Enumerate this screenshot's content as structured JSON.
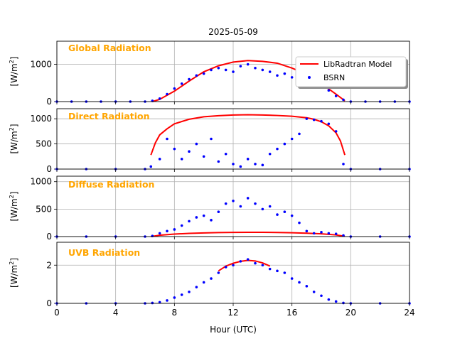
{
  "figure": {
    "title": "2025-05-09",
    "xlabel": "Hour (UTC)",
    "xticks": [
      "0",
      "4",
      "8",
      "12",
      "16",
      "20",
      "24"
    ],
    "legend": {
      "model_label": "LibRadtran Model",
      "obs_label": "BSRN",
      "placement": "top-right of first panel"
    },
    "colors": {
      "model": "#ff0000",
      "obs": "#0000ff",
      "panel_label": "#ffa500",
      "grid": "#b0b0b0"
    }
  },
  "chart_data": [
    {
      "type": "scatter",
      "title": "Global Radiation",
      "ylabel": "[W/m2]",
      "xlim": [
        0,
        24
      ],
      "ylim": [
        0,
        1620
      ],
      "yticks": [
        0,
        1000
      ],
      "ytick_labels": [
        "0",
        "1000"
      ],
      "grid": true,
      "series": [
        {
          "name": "LibRadtran Model",
          "kind": "line",
          "x": [
            6.5,
            7,
            8,
            9,
            10,
            11,
            12,
            13,
            14,
            15,
            16,
            17,
            18,
            19,
            19.6
          ],
          "y": [
            0,
            60,
            280,
            550,
            800,
            960,
            1060,
            1100,
            1080,
            1030,
            900,
            730,
            480,
            200,
            20
          ]
        },
        {
          "name": "BSRN",
          "kind": "scatter",
          "x": [
            0,
            1,
            2,
            3,
            4,
            5,
            6,
            6.5,
            7,
            7.5,
            8,
            8.5,
            9,
            9.5,
            10,
            10.5,
            11,
            11.5,
            12,
            12.5,
            13,
            13.5,
            14,
            14.5,
            15,
            15.5,
            16,
            16.5,
            17,
            17.5,
            18,
            18.5,
            19,
            19.5,
            20,
            21,
            22,
            23,
            24
          ],
          "y": [
            0,
            0,
            0,
            0,
            0,
            0,
            0,
            20,
            80,
            200,
            350,
            480,
            600,
            700,
            750,
            850,
            900,
            850,
            800,
            950,
            1000,
            900,
            850,
            800,
            700,
            750,
            650,
            600,
            550,
            500,
            400,
            300,
            150,
            50,
            0,
            0,
            0,
            0,
            0
          ]
        }
      ]
    },
    {
      "type": "scatter",
      "title": "Direct Radiation",
      "ylabel": "[W/m2]",
      "xlim": [
        0,
        24
      ],
      "ylim": [
        0,
        1200
      ],
      "yticks": [
        0,
        500,
        1000
      ],
      "ytick_labels": [
        "0",
        "500",
        "1000"
      ],
      "grid": true,
      "series": [
        {
          "name": "LibRadtran Model",
          "kind": "line",
          "x": [
            6.4,
            6.7,
            7,
            7.5,
            8,
            9,
            10,
            11,
            12,
            13,
            14,
            15,
            16,
            17,
            17.5,
            18,
            18.5,
            19,
            19.3,
            19.6
          ],
          "y": [
            280,
            520,
            680,
            800,
            900,
            990,
            1040,
            1060,
            1075,
            1080,
            1075,
            1065,
            1050,
            1020,
            990,
            940,
            860,
            720,
            560,
            280
          ]
        },
        {
          "name": "BSRN",
          "kind": "scatter",
          "x": [
            0,
            2,
            4,
            6,
            6.4,
            7,
            7.5,
            8,
            8.5,
            9,
            9.5,
            10,
            10.5,
            11,
            11.5,
            12,
            12.5,
            13,
            13.5,
            14,
            14.5,
            15,
            15.5,
            16,
            16.5,
            17,
            17.5,
            18,
            18.5,
            19,
            19.5,
            20,
            22,
            24
          ],
          "y": [
            0,
            0,
            0,
            0,
            50,
            200,
            600,
            400,
            200,
            350,
            500,
            250,
            600,
            150,
            300,
            100,
            50,
            200,
            100,
            80,
            300,
            400,
            500,
            600,
            700,
            1000,
            980,
            950,
            900,
            750,
            100,
            0,
            0,
            0
          ]
        }
      ]
    },
    {
      "type": "scatter",
      "title": "Diffuse Radiation",
      "ylabel": "[W/m2]",
      "xlim": [
        0,
        24
      ],
      "ylim": [
        0,
        1100
      ],
      "yticks": [
        0,
        500,
        1000
      ],
      "ytick_labels": [
        "0",
        "500",
        "1000"
      ],
      "grid": true,
      "series": [
        {
          "name": "LibRadtran Model",
          "kind": "line",
          "x": [
            6.4,
            7,
            8,
            9,
            10,
            11,
            12,
            13,
            14,
            15,
            16,
            17,
            18,
            19,
            19.6
          ],
          "y": [
            0,
            25,
            45,
            58,
            66,
            72,
            76,
            78,
            77,
            75,
            70,
            62,
            50,
            30,
            5
          ]
        },
        {
          "name": "BSRN",
          "kind": "scatter",
          "x": [
            0,
            2,
            4,
            6,
            6.5,
            7,
            7.5,
            8,
            8.5,
            9,
            9.5,
            10,
            10.5,
            11,
            11.5,
            12,
            12.5,
            13,
            13.5,
            14,
            14.5,
            15,
            15.5,
            16,
            16.5,
            17,
            17.5,
            18,
            18.5,
            19,
            19.5,
            20,
            22,
            24
          ],
          "y": [
            0,
            0,
            0,
            0,
            10,
            60,
            100,
            130,
            200,
            280,
            350,
            380,
            300,
            450,
            600,
            650,
            550,
            700,
            600,
            500,
            550,
            400,
            450,
            380,
            250,
            100,
            60,
            80,
            60,
            50,
            20,
            0,
            0,
            0
          ]
        }
      ]
    },
    {
      "type": "scatter",
      "title": "UVB Radiation",
      "ylabel": "[W/m2]",
      "xlim": [
        0,
        24
      ],
      "ylim": [
        0,
        3.2
      ],
      "yticks": [
        0,
        2
      ],
      "ytick_labels": [
        "0",
        "2"
      ],
      "grid": true,
      "series": [
        {
          "name": "LibRadtran Model",
          "kind": "line",
          "x": [
            11,
            11.5,
            12,
            12.5,
            13,
            13.5,
            14,
            14.5
          ],
          "y": [
            1.7,
            1.95,
            2.1,
            2.2,
            2.25,
            2.22,
            2.12,
            1.95
          ]
        },
        {
          "name": "BSRN",
          "kind": "scatter",
          "x": [
            0,
            2,
            4,
            6,
            6.5,
            7,
            7.5,
            8,
            8.5,
            9,
            9.5,
            10,
            10.5,
            11,
            11.5,
            12,
            12.5,
            13,
            13.5,
            14,
            14.5,
            15,
            15.5,
            16,
            16.5,
            17,
            17.5,
            18,
            18.5,
            19,
            19.5,
            20,
            22,
            24
          ],
          "y": [
            0,
            0,
            0,
            0,
            0.02,
            0.06,
            0.15,
            0.3,
            0.45,
            0.6,
            0.85,
            1.1,
            1.3,
            1.6,
            1.9,
            2.0,
            2.2,
            2.3,
            2.1,
            2.0,
            1.8,
            1.7,
            1.6,
            1.3,
            1.1,
            0.9,
            0.6,
            0.4,
            0.2,
            0.1,
            0.02,
            0,
            0,
            0
          ]
        }
      ]
    }
  ]
}
